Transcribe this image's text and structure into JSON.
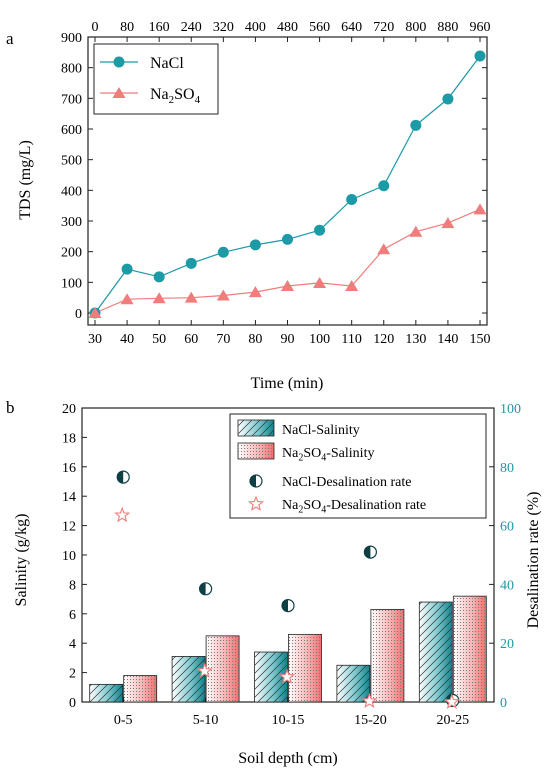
{
  "chart_data": [
    {
      "panel_label": "a",
      "type": "line",
      "ylabel": "TDS (mg/L)",
      "xlabel": "Time (min)",
      "xlim": [
        30,
        150
      ],
      "ylim": [
        0,
        900
      ],
      "x_ticks": [
        "30",
        "40",
        "50",
        "60",
        "70",
        "80",
        "90",
        "100",
        "110",
        "120",
        "130",
        "140",
        "150"
      ],
      "y_ticks": [
        "0",
        "100",
        "200",
        "300",
        "400",
        "500",
        "600",
        "700",
        "800",
        "900"
      ],
      "top_ticks": [
        "0",
        "80",
        "160",
        "240",
        "320",
        "400",
        "480",
        "560",
        "640",
        "720",
        "800",
        "880",
        "960"
      ],
      "legend_position": "top-left",
      "series": [
        {
          "name": "NaCl",
          "color": "#1c9aa6",
          "marker": "circle",
          "x": [
            30,
            40,
            50,
            60,
            70,
            80,
            90,
            100,
            110,
            120,
            130,
            140,
            150
          ],
          "y": [
            0,
            143,
            118,
            162,
            198,
            222,
            240,
            270,
            370,
            415,
            612,
            698,
            838
          ]
        },
        {
          "name": "Na2SO4",
          "color": "#f07c7c",
          "marker": "triangle",
          "x": [
            30,
            40,
            50,
            60,
            70,
            80,
            90,
            100,
            110,
            120,
            130,
            140,
            150
          ],
          "y": [
            0,
            45,
            48,
            50,
            57,
            68,
            88,
            98,
            88,
            208,
            265,
            293,
            338
          ]
        }
      ]
    },
    {
      "panel_label": "b",
      "type": "bar",
      "xlabel": "Soil depth (cm)",
      "ylabel": "Salinity (g/kg)",
      "y2label": "Desalination rate (%)",
      "categories": [
        "0-5",
        "5-10",
        "10-15",
        "15-20",
        "20-25"
      ],
      "ylim": [
        0,
        20
      ],
      "y2lim": [
        0,
        100
      ],
      "y_ticks": [
        "0",
        "2",
        "4",
        "6",
        "8",
        "10",
        "12",
        "14",
        "16",
        "18",
        "20"
      ],
      "y2_ticks": [
        "0",
        "20",
        "40",
        "60",
        "80",
        "100"
      ],
      "legend_position": "top-right",
      "bars": [
        {
          "name": "NaCl-Salinity",
          "color": "#1c9aa6",
          "values": [
            1.2,
            3.1,
            3.4,
            2.5,
            6.8
          ]
        },
        {
          "name": "Na2SO4-Salinity",
          "color": "#f07c7c",
          "values": [
            1.8,
            4.5,
            4.6,
            6.3,
            7.2
          ]
        }
      ],
      "points": [
        {
          "name": "NaCl-Desalination rate",
          "axis": "y2",
          "marker": "half-circle",
          "color": "#1c9aa6",
          "values": [
            76.5,
            38.5,
            32.8,
            51,
            0.5
          ]
        },
        {
          "name": "Na2SO4-Desalination rate",
          "axis": "y2",
          "marker": "star",
          "color": "#f07c7c",
          "values": [
            63.5,
            10.5,
            8.5,
            0.3,
            0
          ]
        }
      ]
    }
  ]
}
